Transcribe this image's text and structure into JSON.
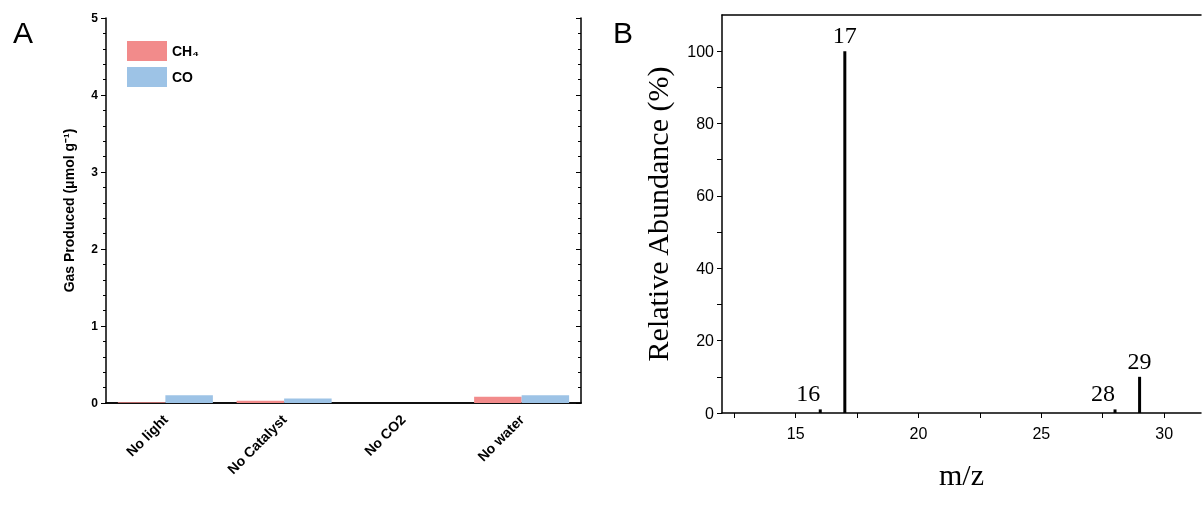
{
  "chart_data": [
    {
      "type": "bar",
      "title": "A",
      "ylabel": "Gas Produced (μmol g⁻¹)",
      "categories": [
        "No light",
        "No Catalyst",
        "No CO2",
        "No water"
      ],
      "series": [
        {
          "name": "CH₄",
          "color": "#f28b8b",
          "values": [
            0.01,
            0.03,
            0,
            0.08
          ]
        },
        {
          "name": "CO",
          "color": "#9dc3e6",
          "values": [
            0.1,
            0.06,
            0,
            0.1
          ]
        }
      ],
      "ylim": [
        0,
        5
      ],
      "yticks": [
        0,
        1,
        2,
        3,
        4,
        5
      ],
      "legend": "top left",
      "grid": false
    },
    {
      "type": "bar",
      "title": "B",
      "xlabel": "m/z",
      "ylabel": "Relative Abundance (%)",
      "x": [
        16,
        17,
        28,
        29
      ],
      "series": [
        {
          "color": "#000000",
          "values": [
            1,
            100,
            1,
            10
          ]
        }
      ],
      "xlim": [
        12,
        31.5
      ],
      "xticks": [
        {
          "value": 12.5,
          "label": null
        },
        15,
        {
          "value": 17.5,
          "label": null
        },
        20,
        {
          "value": 22.5,
          "label": null
        },
        25,
        {
          "value": 27.5,
          "label": null
        },
        30
      ],
      "ylim": [
        0,
        110
      ],
      "yticks": [
        0,
        {
          "value": 10,
          "label": null
        },
        20,
        {
          "value": 30,
          "label": null
        },
        40,
        {
          "value": 50,
          "label": null
        },
        60,
        {
          "value": 70,
          "label": null
        },
        80,
        {
          "value": 90,
          "label": null
        },
        100
      ],
      "annotations": [
        {
          "text": "16",
          "x": 16,
          "y": 1
        },
        {
          "text": "17",
          "x": 17,
          "y": 100
        },
        {
          "text": "28",
          "x": 28,
          "y": 1
        },
        {
          "text": "29",
          "x": 29,
          "y": 10
        }
      ],
      "grid": false
    }
  ]
}
